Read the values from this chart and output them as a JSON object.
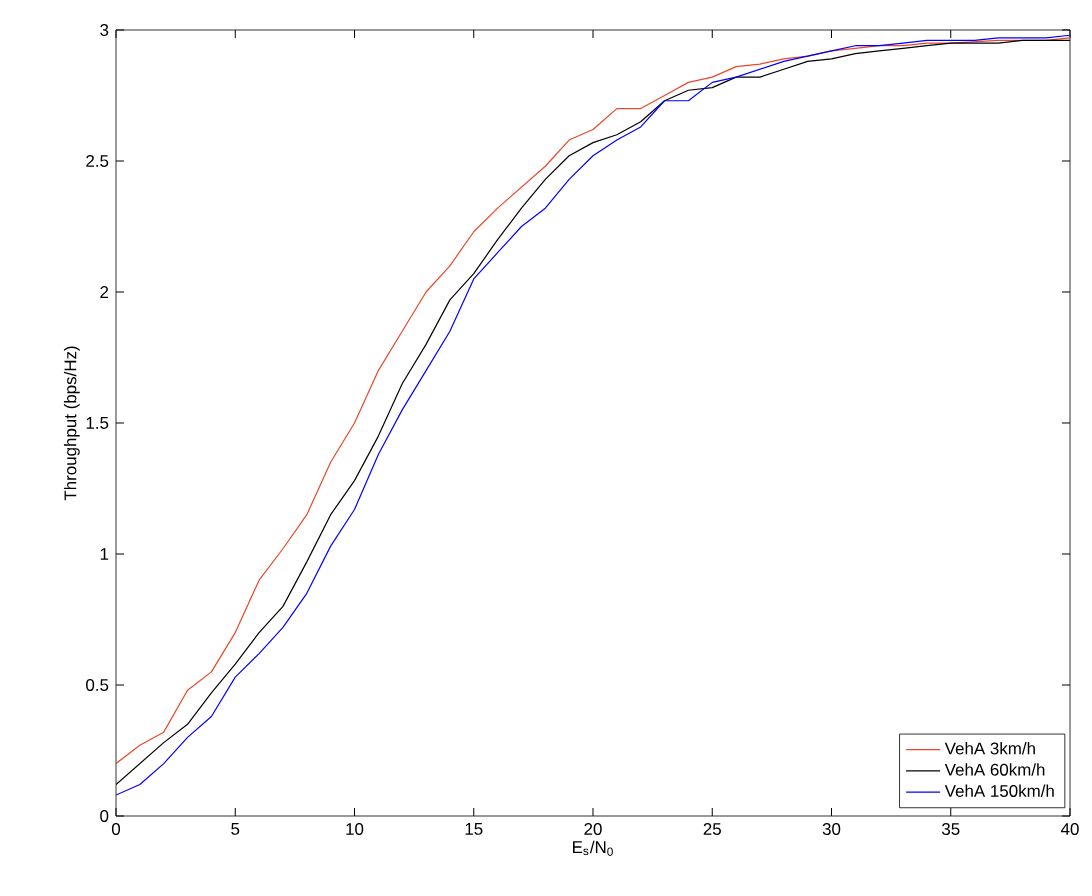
{
  "chart_data": {
    "type": "line",
    "xlabel": "E$_{s}$/N$_{0}$",
    "ylabel": "Throughput (bps/Hz)",
    "x": [
      0,
      1,
      2,
      3,
      4,
      5,
      6,
      7,
      8,
      9,
      10,
      11,
      12,
      13,
      14,
      15,
      16,
      17,
      18,
      19,
      20,
      21,
      22,
      23,
      24,
      25,
      26,
      27,
      28,
      29,
      30,
      31,
      32,
      33,
      34,
      35,
      36,
      37,
      38,
      39,
      40
    ],
    "series": [
      {
        "name": "VehA 3km/h",
        "color": "#e8472a",
        "values": [
          0.2,
          0.27,
          0.32,
          0.48,
          0.55,
          0.7,
          0.9,
          1.02,
          1.15,
          1.35,
          1.5,
          1.7,
          1.85,
          2.0,
          2.1,
          2.23,
          2.32,
          2.4,
          2.48,
          2.58,
          2.62,
          2.7,
          2.7,
          2.75,
          2.8,
          2.82,
          2.86,
          2.87,
          2.89,
          2.9,
          2.92,
          2.93,
          2.94,
          2.94,
          2.95,
          2.95,
          null,
          2.96,
          2.96,
          2.96,
          2.97
        ]
      },
      {
        "name": "VehA 60km/h",
        "color": "#000000",
        "values": [
          0.12,
          0.2,
          0.28,
          0.35,
          0.47,
          0.58,
          0.7,
          0.8,
          0.97,
          1.15,
          1.28,
          1.45,
          1.65,
          1.8,
          1.97,
          2.07,
          2.2,
          2.32,
          2.43,
          2.52,
          2.57,
          2.6,
          2.65,
          2.73,
          2.77,
          2.78,
          2.82,
          2.82,
          2.85,
          2.88,
          2.89,
          2.91,
          2.92,
          2.93,
          2.94,
          2.95,
          2.95,
          2.95,
          2.96,
          2.96,
          2.96
        ]
      },
      {
        "name": "VehA 150km/h",
        "color": "#0000ff",
        "values": [
          0.08,
          0.12,
          0.2,
          0.3,
          0.38,
          0.53,
          0.62,
          0.72,
          0.85,
          1.03,
          1.17,
          1.38,
          1.55,
          1.7,
          1.85,
          2.05,
          2.15,
          2.25,
          2.32,
          2.43,
          2.52,
          2.58,
          2.63,
          2.73,
          2.73,
          2.8,
          2.82,
          2.85,
          2.88,
          2.9,
          2.92,
          2.94,
          2.94,
          2.95,
          2.96,
          2.96,
          2.96,
          2.97,
          2.97,
          2.97,
          2.98
        ]
      }
    ],
    "xlim": [
      0,
      40
    ],
    "ylim": [
      0,
      3
    ],
    "xticks": [
      0,
      5,
      10,
      15,
      20,
      25,
      30,
      35,
      40
    ],
    "yticks": [
      0,
      0.5,
      1,
      1.5,
      2,
      2.5,
      3
    ],
    "grid": false,
    "legend": "bottom right"
  }
}
